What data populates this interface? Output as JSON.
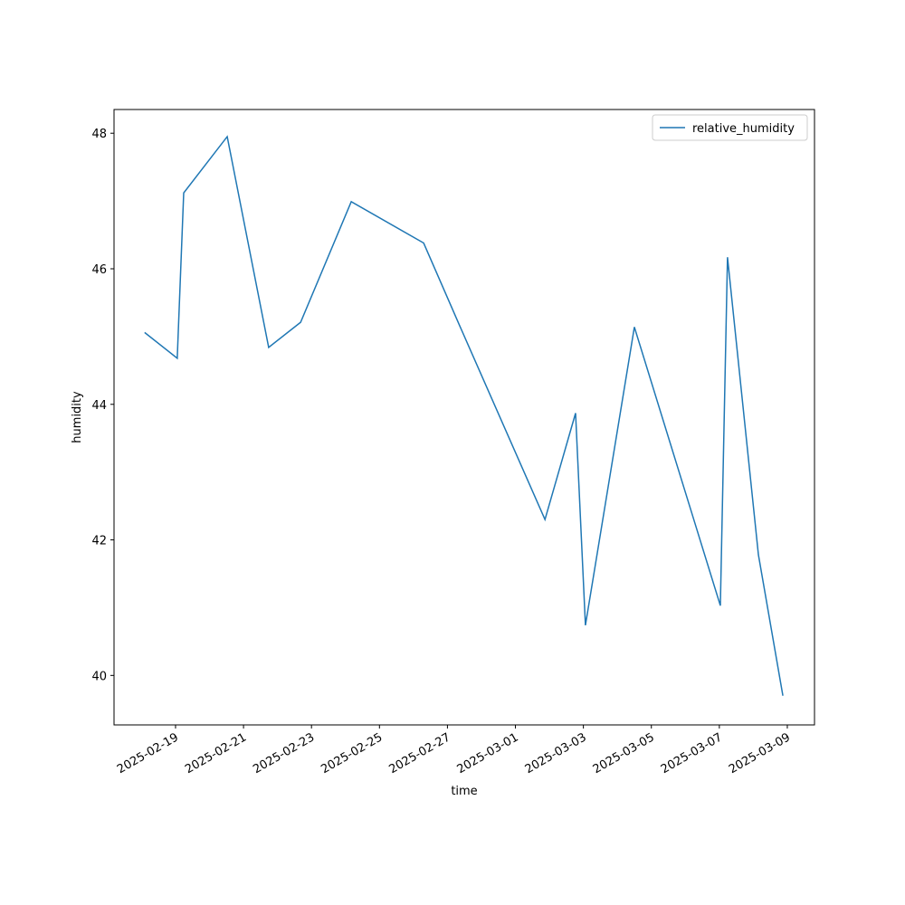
{
  "chart_data": {
    "type": "line",
    "xlabel": "time",
    "ylabel": "humidity",
    "series": [
      {
        "name": "relative_humidity",
        "color": "#1f77b4",
        "x": [
          20137.09,
          20138.05,
          20138.24,
          20139.52,
          20140.74,
          20141.68,
          20143.17,
          20145.3,
          20146.36,
          20148.87,
          20149.77,
          20150.06,
          20151.5,
          20154.03,
          20154.24,
          20155.15,
          20155.87
        ],
        "values": [
          45.06,
          44.68,
          47.12,
          47.95,
          44.84,
          45.21,
          46.99,
          46.38,
          45.16,
          42.3,
          43.87,
          40.74,
          45.14,
          41.03,
          46.17,
          41.78,
          39.7
        ]
      }
    ],
    "xlim": [
      20136.19,
      20156.8
    ],
    "xticks": [
      {
        "value": 20138,
        "label": "2025-02-19"
      },
      {
        "value": 20140,
        "label": "2025-02-21"
      },
      {
        "value": 20142,
        "label": "2025-02-23"
      },
      {
        "value": 20144,
        "label": "2025-02-25"
      },
      {
        "value": 20146,
        "label": "2025-02-27"
      },
      {
        "value": 20148,
        "label": "2025-03-01"
      },
      {
        "value": 20150,
        "label": "2025-03-03"
      },
      {
        "value": 20152,
        "label": "2025-03-05"
      },
      {
        "value": 20154,
        "label": "2025-03-07"
      },
      {
        "value": 20156,
        "label": "2025-03-09"
      }
    ],
    "ylim": [
      39.27,
      48.35
    ],
    "yticks": [
      40,
      42,
      44,
      46,
      48
    ],
    "legend": "upper right"
  }
}
